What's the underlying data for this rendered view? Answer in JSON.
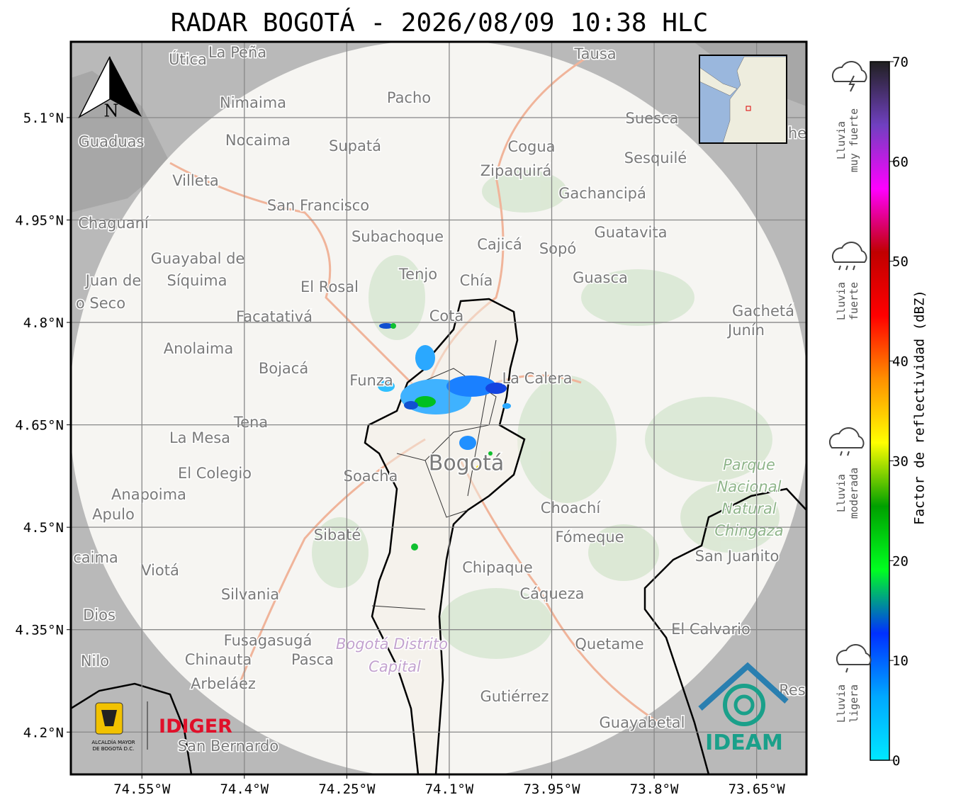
{
  "title": "RADAR BOGOTÁ - 2026/08/09 10:38 HLC",
  "map": {
    "xlim": [
      -74.654,
      -73.577
    ],
    "ylim": [
      4.138,
      5.211
    ],
    "grid": true,
    "north": "N",
    "xticks": [
      {
        "value": -74.55,
        "label": "74.55°W"
      },
      {
        "value": -74.4,
        "label": "74.4°W"
      },
      {
        "value": -74.25,
        "label": "74.25°W"
      },
      {
        "value": -74.1,
        "label": "74.1°W"
      },
      {
        "value": -73.95,
        "label": "73.95°W"
      },
      {
        "value": -73.8,
        "label": "73.8°W"
      },
      {
        "value": -73.65,
        "label": "73.65°W"
      }
    ],
    "yticks": [
      {
        "value": 5.1,
        "label": "5.1°N"
      },
      {
        "value": 4.95,
        "label": "4.95°N"
      },
      {
        "value": 4.8,
        "label": "4.8°N"
      },
      {
        "value": 4.65,
        "label": "4.65°N"
      },
      {
        "value": 4.5,
        "label": "4.5°N"
      },
      {
        "value": 4.35,
        "label": "4.35°N"
      },
      {
        "value": 4.2,
        "label": "4.2°N"
      }
    ],
    "places": [
      "Útica",
      "La Peña",
      "Tausa",
      "Pacho",
      "Nimaima",
      "Suesca",
      "Guaduas",
      "Nocaima",
      "Supatá",
      "Cogua",
      "Sesquilé",
      "Zipaquirá",
      "Villeta",
      "Gachancipá",
      "San Francisco",
      "Chaguaní",
      "Guatavita",
      "Subachoque",
      "Cajicá",
      "Sopó",
      "Guayabal de",
      "Síquima",
      "Juan de",
      "Tenjo",
      "Chía",
      "Guasca",
      "El Rosal",
      "o Seco",
      "Facatativá",
      "Cota",
      "Gachetá",
      "Junín",
      "Anolaima",
      "Bojacá",
      "Funza",
      "La Calera",
      "Tena",
      "La Mesa",
      "El Colegio",
      "Soacha",
      "Bogotá",
      "Anapoima",
      "Apulo",
      "Choachí",
      "Sibaté",
      "Fómeque",
      "San Juanito",
      "caima",
      "Viotá",
      "Chipaque",
      "Silvania",
      "Cáqueza",
      "Dios",
      "El Calvario",
      "Fusagasugá",
      "Quetame",
      "Nilo",
      "Chinauta",
      "Pasca",
      "Arbeláez",
      "Gutiérrez",
      "Res",
      "Guayabetal",
      "San Bernardo",
      "he"
    ],
    "park": [
      "Parque",
      "Nacional",
      "Natural",
      "Chingaza"
    ],
    "district": [
      "Bogotá Distrito",
      "Capital"
    ]
  },
  "colorbar": {
    "label": "Factor de reflectividad (dBZ)",
    "lim": [
      0,
      70
    ],
    "ticks": [
      0,
      10,
      20,
      30,
      40,
      50,
      60,
      70
    ],
    "colors": [
      "#00e8ff",
      "#00a8ff",
      "#0030ff",
      "#00ff20",
      "#00a000",
      "#ffff00",
      "#ff9000",
      "#ff0000",
      "#c00000",
      "#ff00ff",
      "#7040c0",
      "#202020"
    ]
  },
  "rain_levels": [
    [
      "Lluvia",
      "muy fuerte"
    ],
    [
      "Lluvia",
      "fuerte"
    ],
    [
      "Lluvia",
      "moderada"
    ],
    [
      "Lluvia",
      "ligera"
    ]
  ],
  "logos": {
    "alcaldia": [
      "ALCALDÍA MAYOR",
      "DE BOGOTÁ D.C."
    ],
    "idiger": "IDIGER",
    "ideam": "IDEAM"
  }
}
